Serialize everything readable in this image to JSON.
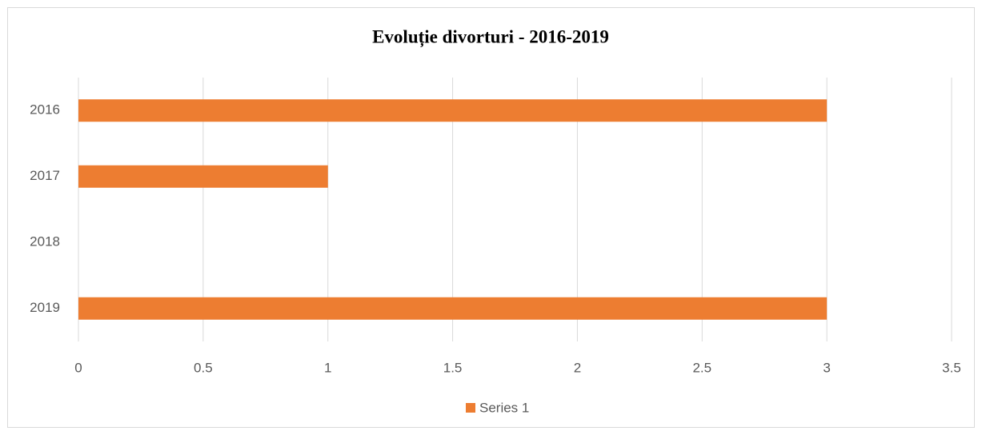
{
  "chart_data": {
    "type": "bar",
    "orientation": "horizontal",
    "title": "Evoluție divorturi - 2016-2019",
    "categories": [
      "2016",
      "2017",
      "2018",
      "2019"
    ],
    "series": [
      {
        "name": "Series 1",
        "color": "#ed7d31",
        "values": [
          3,
          1,
          0,
          3
        ]
      }
    ],
    "xlim": [
      0,
      3.5
    ],
    "xticks": [
      0,
      0.5,
      1,
      1.5,
      2,
      2.5,
      3,
      3.5
    ],
    "grid": true,
    "legend": "bottom"
  }
}
